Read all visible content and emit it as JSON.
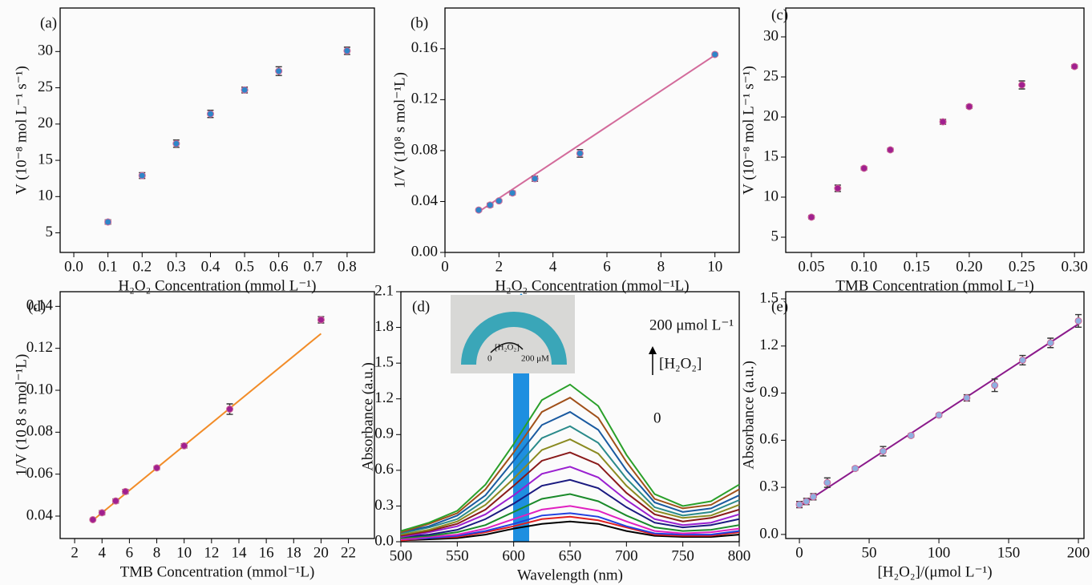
{
  "chart_data": [
    {
      "type": "scatter",
      "label": "(a)",
      "x_label": "H₂O₂ Concentration (mmol L⁻¹)",
      "y_label": "V (10⁻⁸ mol L⁻¹ s⁻¹)",
      "xlim": [
        -0.04,
        0.88
      ],
      "ylim": [
        2.3,
        36
      ],
      "xticks": [
        {
          "value": 0,
          "label": "0.0"
        },
        0.1,
        0.2,
        0.3,
        0.4,
        0.5,
        0.6,
        0.7,
        0.8
      ],
      "yticks": [
        5,
        10,
        15,
        20,
        25,
        30
      ],
      "series": [
        {
          "mode": "markers",
          "color": "#2f86c8",
          "x": [
            0.1,
            0.2,
            0.3,
            0.4,
            0.5,
            0.6,
            0.8
          ],
          "values": [
            6.5,
            12.9,
            17.3,
            21.4,
            24.7,
            27.3,
            30.1
          ],
          "errors": [
            0.3,
            0.4,
            0.5,
            0.5,
            0.4,
            0.6,
            0.5
          ]
        }
      ]
    },
    {
      "type": "scatter",
      "label": "(b)",
      "x_label": "H₂O₂ Concentration (mmol⁻¹L)",
      "y_label": "1/V (10⁸ s mol⁻¹L)",
      "xlim": [
        0,
        10.9
      ],
      "ylim": [
        0,
        0.192
      ],
      "xticks": [
        0,
        2,
        4,
        6,
        8,
        10
      ],
      "yticks": [
        {
          "value": 0,
          "label": "0.00"
        },
        0.04,
        0.08,
        0.12,
        0.16
      ],
      "series": [
        {
          "mode": "lines",
          "color": "#d36b9b",
          "x": [
            1.25,
            10
          ],
          "values": [
            0.032,
            0.155
          ]
        },
        {
          "mode": "markers",
          "color": "#2f86c8",
          "x": [
            1.25,
            1.67,
            2,
            2.5,
            3.33,
            5,
            10
          ],
          "values": [
            0.0333,
            0.0372,
            0.0405,
            0.0467,
            0.0579,
            0.0778,
            0.1555
          ],
          "errors": [
            0.001,
            0.0015,
            0.001,
            0.0015,
            0.002,
            0.003,
            0.001
          ]
        }
      ]
    },
    {
      "type": "scatter",
      "label": "(c)",
      "x_label": "TMB Concentration (mmol L⁻¹)",
      "y_label": "V (10⁻⁸ mol L⁻¹ s⁻¹)",
      "xlim": [
        0.0256,
        0.309
      ],
      "ylim": [
        3.1,
        33.6
      ],
      "xticks": [
        0.05,
        {
          "value": 0.1,
          "label": "0.10"
        },
        0.15,
        {
          "value": 0.2,
          "label": "0.20"
        },
        0.25,
        {
          "value": 0.3,
          "label": "0.30"
        }
      ],
      "yticks": [
        5,
        10,
        15,
        20,
        25,
        30
      ],
      "series": [
        {
          "mode": "markers",
          "color": "#a0208f",
          "x": [
            0.05,
            0.075,
            0.1,
            0.125,
            0.175,
            0.2,
            0.25,
            0.3
          ],
          "values": [
            7.5,
            11.1,
            13.6,
            15.9,
            19.4,
            21.3,
            24,
            26.3
          ],
          "errors": [
            0.2,
            0.4,
            0.2,
            0.2,
            0.3,
            0.2,
            0.5,
            0.2
          ]
        }
      ]
    },
    {
      "type": "scatter",
      "label": "(d)",
      "x_label": "TMB Concentration (mmol⁻¹L)",
      "y_label": "1/V (10 8 s mol⁻¹L)",
      "xlim": [
        0.94,
        23.9
      ],
      "ylim": [
        0.0293,
        0.147
      ],
      "xticks": [
        2,
        4,
        6,
        8,
        10,
        12,
        14,
        16,
        18,
        20,
        22
      ],
      "yticks": [
        0.04,
        0.06,
        0.08,
        {
          "value": 0.1,
          "label": "0.10"
        },
        0.12,
        0.14
      ],
      "series": [
        {
          "mode": "lines",
          "color": "#f28c28",
          "x": [
            3.33,
            20
          ],
          "values": [
            0.038,
            0.127
          ]
        },
        {
          "mode": "markers",
          "color": "#a0208f",
          "x": [
            3.33,
            4,
            5,
            5.71,
            8,
            10,
            13.33,
            20
          ],
          "values": [
            0.0383,
            0.0416,
            0.0472,
            0.0517,
            0.063,
            0.0735,
            0.091,
            0.1336
          ],
          "errors": [
            0.0005,
            0.001,
            0.001,
            0.001,
            0.0008,
            0.001,
            0.0025,
            0.0015
          ]
        }
      ]
    },
    {
      "type": "line",
      "label": "(d)",
      "x_label": "Wavelength (nm)",
      "y_label": "Absorbance (a.u.)",
      "annotations": [
        "200 μmol L⁻¹",
        "[H₂O₂]",
        "0"
      ],
      "inset_labels": [
        "[H₂O₂]",
        "0",
        "200 μM"
      ],
      "xlim": [
        500,
        800
      ],
      "ylim": [
        0,
        2.1
      ],
      "xticks": [
        500,
        550,
        600,
        650,
        700,
        750,
        800
      ],
      "yticks": [
        {
          "value": 0,
          "label": "0.0"
        },
        0.3,
        0.6,
        0.9,
        1.2,
        1.5,
        1.8,
        2.1
      ],
      "x": [
        500,
        525,
        550,
        575,
        600,
        625,
        650,
        675,
        700,
        725,
        750,
        775,
        800
      ],
      "series": [
        {
          "color": "#000000",
          "values": [
            0.01,
            0.02,
            0.03,
            0.06,
            0.11,
            0.15,
            0.17,
            0.15,
            0.09,
            0.05,
            0.04,
            0.04,
            0.06
          ]
        },
        {
          "color": "#e02020",
          "values": [
            0.01,
            0.03,
            0.04,
            0.08,
            0.13,
            0.19,
            0.21,
            0.18,
            0.12,
            0.06,
            0.05,
            0.05,
            0.08
          ]
        },
        {
          "color": "#2040e0",
          "values": [
            0.02,
            0.03,
            0.05,
            0.09,
            0.15,
            0.22,
            0.24,
            0.21,
            0.13,
            0.07,
            0.06,
            0.06,
            0.09
          ]
        },
        {
          "color": "#e020c0",
          "values": [
            0.02,
            0.04,
            0.06,
            0.11,
            0.19,
            0.27,
            0.3,
            0.26,
            0.17,
            0.09,
            0.07,
            0.08,
            0.11
          ]
        },
        {
          "color": "#1a8a2a",
          "values": [
            0.03,
            0.05,
            0.08,
            0.14,
            0.25,
            0.36,
            0.4,
            0.34,
            0.22,
            0.12,
            0.09,
            0.1,
            0.14
          ]
        },
        {
          "color": "#1a1a80",
          "values": [
            0.04,
            0.06,
            0.1,
            0.19,
            0.32,
            0.47,
            0.52,
            0.45,
            0.29,
            0.16,
            0.12,
            0.14,
            0.19
          ]
        },
        {
          "color": "#9a20d0",
          "values": [
            0.04,
            0.08,
            0.13,
            0.23,
            0.39,
            0.57,
            0.63,
            0.54,
            0.35,
            0.19,
            0.14,
            0.16,
            0.23
          ]
        },
        {
          "color": "#8a1a1a",
          "values": [
            0.05,
            0.09,
            0.15,
            0.27,
            0.47,
            0.68,
            0.75,
            0.65,
            0.41,
            0.23,
            0.17,
            0.2,
            0.27
          ]
        },
        {
          "color": "#8a8a20",
          "values": [
            0.06,
            0.1,
            0.17,
            0.31,
            0.53,
            0.77,
            0.86,
            0.74,
            0.47,
            0.26,
            0.2,
            0.22,
            0.31
          ]
        },
        {
          "color": "#2a8a8a",
          "values": [
            0.07,
            0.12,
            0.19,
            0.35,
            0.6,
            0.87,
            0.97,
            0.83,
            0.53,
            0.29,
            0.22,
            0.25,
            0.35
          ]
        },
        {
          "color": "#1a5aa0",
          "values": [
            0.08,
            0.13,
            0.22,
            0.39,
            0.68,
            0.98,
            1.09,
            0.94,
            0.6,
            0.33,
            0.25,
            0.28,
            0.39
          ]
        },
        {
          "color": "#a0501a",
          "values": [
            0.08,
            0.15,
            0.24,
            0.44,
            0.75,
            1.09,
            1.21,
            1.04,
            0.67,
            0.36,
            0.28,
            0.31,
            0.44
          ]
        },
        {
          "color": "#2aa02a",
          "values": [
            0.09,
            0.16,
            0.26,
            0.48,
            0.82,
            1.19,
            1.32,
            1.14,
            0.73,
            0.4,
            0.3,
            0.34,
            0.48
          ]
        }
      ]
    },
    {
      "type": "scatter",
      "label": "(e)",
      "x_label": "[H₂O₂]/(μmol L⁻¹)",
      "y_label": "Absorbance (a.u.)",
      "xlim": [
        -9.8,
        204
      ],
      "ylim": [
        -0.026,
        1.546
      ],
      "xticks": [
        0,
        50,
        100,
        150,
        200
      ],
      "yticks": [
        {
          "value": 0,
          "label": "0.0"
        },
        0.3,
        0.6,
        0.9,
        1.2,
        1.5
      ],
      "series": [
        {
          "mode": "lines",
          "color": "#8b1a8b",
          "x": [
            0,
            200
          ],
          "values": [
            0.18,
            1.34
          ]
        },
        {
          "mode": "markers",
          "color": "#8fb0e0",
          "x": [
            0,
            5,
            10,
            20,
            40,
            60,
            80,
            100,
            120,
            140,
            160,
            180,
            200
          ],
          "values": [
            0.19,
            0.21,
            0.24,
            0.33,
            0.42,
            0.53,
            0.63,
            0.76,
            0.87,
            0.95,
            1.11,
            1.22,
            1.36
          ],
          "errors": [
            0.02,
            0.02,
            0.02,
            0.03,
            0.01,
            0.03,
            0.01,
            0.01,
            0.02,
            0.04,
            0.03,
            0.03,
            0.04
          ]
        }
      ]
    }
  ]
}
